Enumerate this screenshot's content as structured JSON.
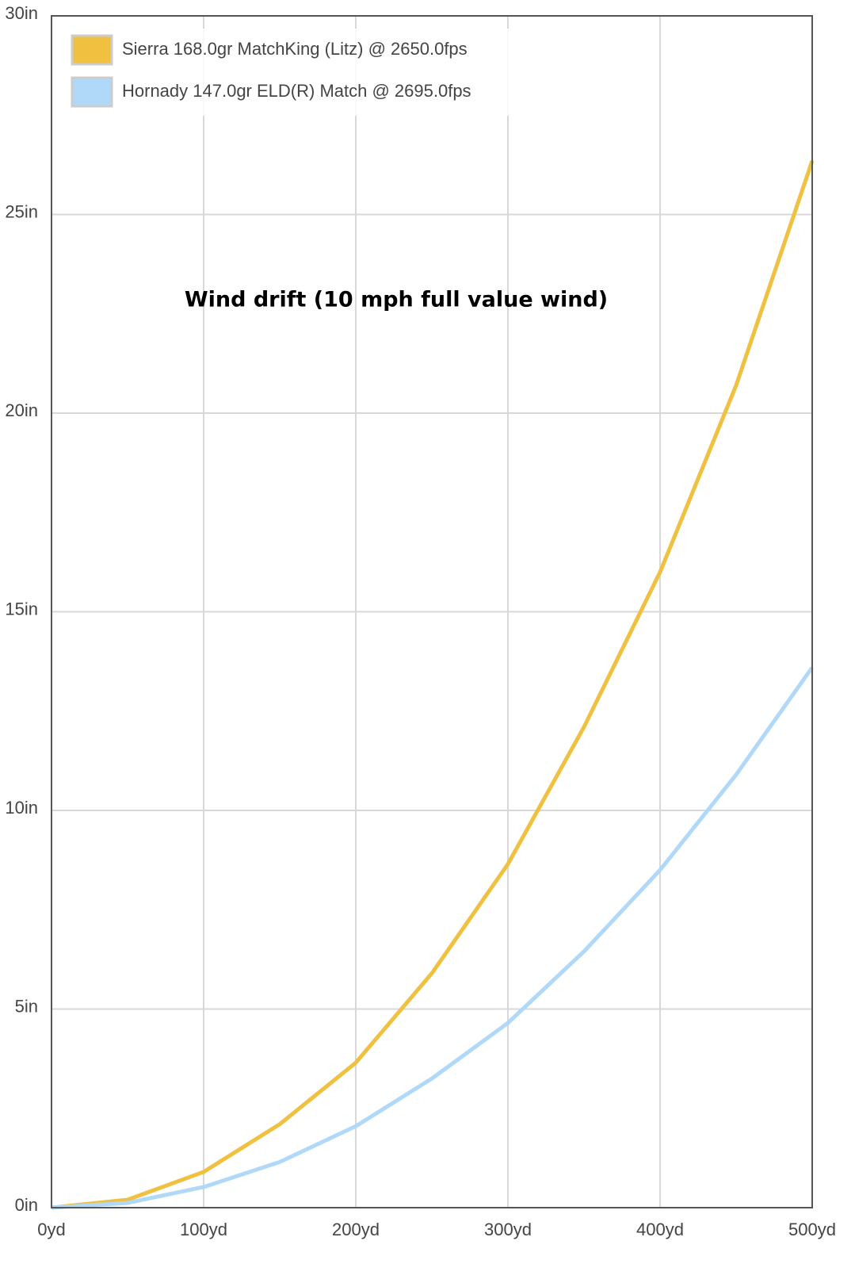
{
  "chart_data": {
    "type": "line",
    "title": "Wind drift (10 mph full value wind)",
    "x": [
      0,
      50,
      100,
      150,
      200,
      250,
      300,
      350,
      400,
      450,
      500
    ],
    "xlim": [
      0,
      500
    ],
    "xticks": [
      {
        "value": 0,
        "label": "0yd"
      },
      {
        "value": 100,
        "label": "100yd"
      },
      {
        "value": 200,
        "label": "200yd"
      },
      {
        "value": 300,
        "label": "300yd"
      },
      {
        "value": 400,
        "label": "400yd"
      },
      {
        "value": 500,
        "label": "500yd"
      }
    ],
    "ylim": [
      0,
      30
    ],
    "yticks": [
      {
        "value": 0,
        "label": "0in"
      },
      {
        "value": 5,
        "label": "5in"
      },
      {
        "value": 10,
        "label": "10in"
      },
      {
        "value": 15,
        "label": "15in"
      },
      {
        "value": 20,
        "label": "20in"
      },
      {
        "value": 25,
        "label": "25in"
      },
      {
        "value": 30,
        "label": "30in"
      }
    ],
    "grid": true,
    "legend": "top-left",
    "series": [
      {
        "name": "Sierra 168.0gr MatchKing (Litz) @ 2650.0fps",
        "color": "#f0c040",
        "values": [
          0,
          0.2,
          0.9,
          2.1,
          3.65,
          5.9,
          8.65,
          12.1,
          16.0,
          20.7,
          26.35
        ]
      },
      {
        "name": "Hornady 147.0gr ELD(R) Match @ 2695.0fps",
        "color": "#b0d8f8",
        "values": [
          0,
          0.12,
          0.52,
          1.15,
          2.05,
          3.25,
          4.65,
          6.45,
          8.5,
          10.9,
          13.6
        ]
      }
    ]
  }
}
